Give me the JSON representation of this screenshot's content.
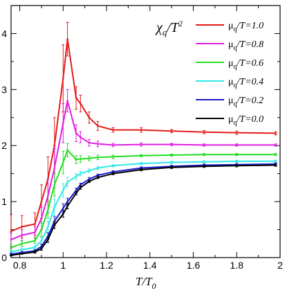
{
  "chart_data": {
    "type": "line",
    "xlabel": "T/T0",
    "xlabel_main": "T/T",
    "xlabel_sub": "0",
    "ylabel": "χq/T2",
    "ylabel_chi": "χ",
    "ylabel_sub": "q",
    "ylabel_over": "/T",
    "ylabel_sup": "2",
    "xlim": [
      0.76,
      2.0
    ],
    "ylim": [
      0,
      4.5
    ],
    "xticks": [
      "0.8",
      "1",
      "1.2",
      "1.4",
      "1.6",
      "1.8",
      "2"
    ],
    "yticks": [
      "0",
      "1",
      "2",
      "3",
      "4"
    ],
    "legend_position": "top-right",
    "x": [
      0.76,
      0.81,
      0.87,
      0.9,
      0.93,
      0.96,
      1.0,
      1.02,
      1.06,
      1.08,
      1.12,
      1.16,
      1.23,
      1.36,
      1.5,
      1.65,
      1.8,
      1.98
    ],
    "series": [
      {
        "name": "μq/T=1.0",
        "name_mu": "μ",
        "name_sub": "q",
        "name_rest": "/T=1.0",
        "color": "#e51a1a",
        "values": [
          0.47,
          0.55,
          0.6,
          1.0,
          1.4,
          2.0,
          3.2,
          3.9,
          2.85,
          2.75,
          2.5,
          2.35,
          2.28,
          2.28,
          2.26,
          2.24,
          2.23,
          2.22
        ],
        "errors": [
          0.3,
          0.2,
          0.2,
          0.3,
          0.4,
          0.5,
          0.6,
          0.3,
          0.2,
          0.15,
          0.1,
          0.08,
          0.04,
          0.04,
          0.03,
          0.03,
          0.03,
          0.03
        ]
      },
      {
        "name": "μq/T=0.8",
        "name_mu": "μ",
        "name_sub": "q",
        "name_rest": "/T=0.8",
        "color": "#e01ee0",
        "values": [
          0.32,
          0.4,
          0.45,
          0.7,
          1.1,
          1.6,
          2.4,
          2.8,
          2.22,
          2.15,
          2.05,
          2.03,
          2.01,
          2.02,
          2.02,
          2.01,
          2.01,
          2.01
        ],
        "errors": [
          0.12,
          0.1,
          0.1,
          0.2,
          0.3,
          0.35,
          0.35,
          0.2,
          0.15,
          0.1,
          0.06,
          0.05,
          0.03,
          0.03,
          0.02,
          0.02,
          0.02,
          0.02
        ]
      },
      {
        "name": "μq/T=0.6",
        "name_mu": "μ",
        "name_sub": "q",
        "name_rest": "/T=0.6",
        "color": "#22dd22",
        "values": [
          0.18,
          0.25,
          0.3,
          0.5,
          0.85,
          1.3,
          1.7,
          1.92,
          1.75,
          1.76,
          1.77,
          1.79,
          1.8,
          1.82,
          1.83,
          1.84,
          1.84,
          1.84
        ],
        "errors": [
          0.06,
          0.05,
          0.05,
          0.12,
          0.15,
          0.2,
          0.2,
          0.12,
          0.07,
          0.06,
          0.04,
          0.04,
          0.03,
          0.02,
          0.02,
          0.02,
          0.02,
          0.02
        ]
      },
      {
        "name": "μq/T=0.4",
        "name_mu": "μ",
        "name_sub": "q",
        "name_rest": "/T=0.4",
        "color": "#2fe8e8",
        "values": [
          0.1,
          0.14,
          0.18,
          0.3,
          0.55,
          0.9,
          1.2,
          1.35,
          1.45,
          1.5,
          1.55,
          1.6,
          1.64,
          1.68,
          1.7,
          1.71,
          1.72,
          1.72
        ],
        "errors": [
          0.03,
          0.03,
          0.03,
          0.06,
          0.1,
          0.15,
          0.12,
          0.08,
          0.05,
          0.04,
          0.03,
          0.03,
          0.02,
          0.02,
          0.02,
          0.02,
          0.02,
          0.02
        ]
      },
      {
        "name": "μq/T=0.2",
        "name_mu": "μ",
        "name_sub": "q",
        "name_rest": "/T=0.2",
        "color": "#1a1acc",
        "values": [
          0.06,
          0.09,
          0.12,
          0.2,
          0.38,
          0.65,
          0.88,
          1.0,
          1.2,
          1.3,
          1.4,
          1.47,
          1.53,
          1.6,
          1.63,
          1.65,
          1.66,
          1.67
        ],
        "errors": [
          0.02,
          0.02,
          0.02,
          0.04,
          0.06,
          0.08,
          0.08,
          0.06,
          0.04,
          0.03,
          0.03,
          0.02,
          0.02,
          0.02,
          0.02,
          0.02,
          0.02,
          0.02
        ]
      },
      {
        "name": "μq/T=0.0",
        "name_mu": "μ",
        "name_sub": "q",
        "name_rest": "/T=0.0",
        "color": "#000000",
        "values": [
          0.04,
          0.07,
          0.1,
          0.16,
          0.32,
          0.58,
          0.78,
          0.92,
          1.15,
          1.25,
          1.36,
          1.43,
          1.5,
          1.57,
          1.61,
          1.63,
          1.64,
          1.65
        ],
        "errors": [
          0.01,
          0.01,
          0.02,
          0.03,
          0.05,
          0.06,
          0.06,
          0.05,
          0.03,
          0.03,
          0.02,
          0.02,
          0.02,
          0.02,
          0.02,
          0.02,
          0.02,
          0.02
        ]
      }
    ]
  }
}
